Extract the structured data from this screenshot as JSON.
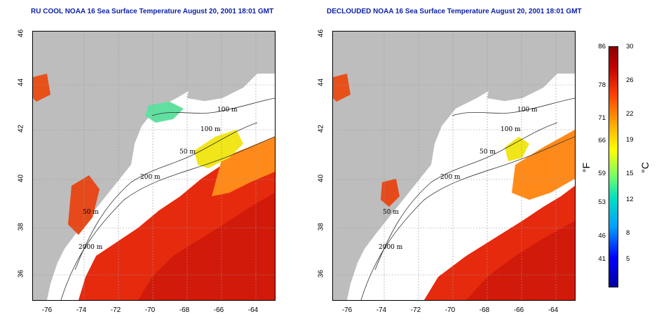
{
  "titles": {
    "left": "RU COOL NOAA 16 Sea Surface Temperature August 20, 2001 18:01 GMT",
    "right": "DECLOUDED NOAA 16 Sea Surface Temperature August 20, 2001 18:01 GMT"
  },
  "axes": {
    "lon_ticks": [
      "-76",
      "-74",
      "-72",
      "-70",
      "-68",
      "-66",
      "-64"
    ],
    "lat_ticks": [
      "46",
      "44",
      "42",
      "40",
      "38",
      "36"
    ]
  },
  "contour_labels": [
    "100 m",
    "100 m",
    "50 m",
    "200 m",
    "50 m",
    "2000 m"
  ],
  "colorbar": {
    "fahrenheit": [
      "86",
      "78",
      "71",
      "66",
      "59",
      "53",
      "46",
      "41"
    ],
    "celsius": [
      "30",
      "26",
      "22",
      "19",
      "15",
      "12",
      "8",
      "5"
    ],
    "unit_f": "°F",
    "unit_c": "°C"
  },
  "colors": {
    "land": "#bdbdbd",
    "warm": "#e62a0e",
    "hot": "#d11a0a",
    "mid": "#ff8a1a",
    "cool": "#f0e61a",
    "title": "#0b1fa8"
  }
}
